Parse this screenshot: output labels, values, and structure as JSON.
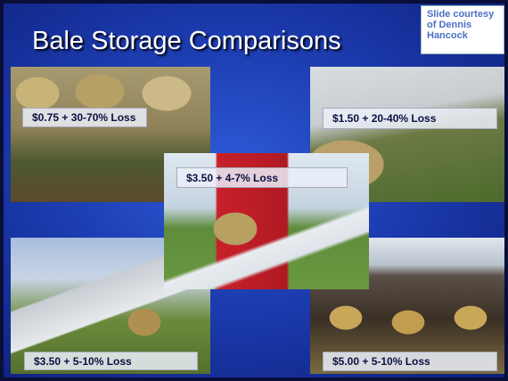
{
  "slide": {
    "title": "Bale Storage Comparisons",
    "courtesy": "Slide courtesy of Dennis Hancock",
    "photos": [
      {
        "label": "$0.75 + 30-70% Loss"
      },
      {
        "label": "$1.50 + 20-40% Loss"
      },
      {
        "label": "$3.50 + 4-7% Loss"
      },
      {
        "label": "$3.50 + 5-10% Loss"
      },
      {
        "label": "$5.00 + 5-10% Loss"
      }
    ]
  }
}
